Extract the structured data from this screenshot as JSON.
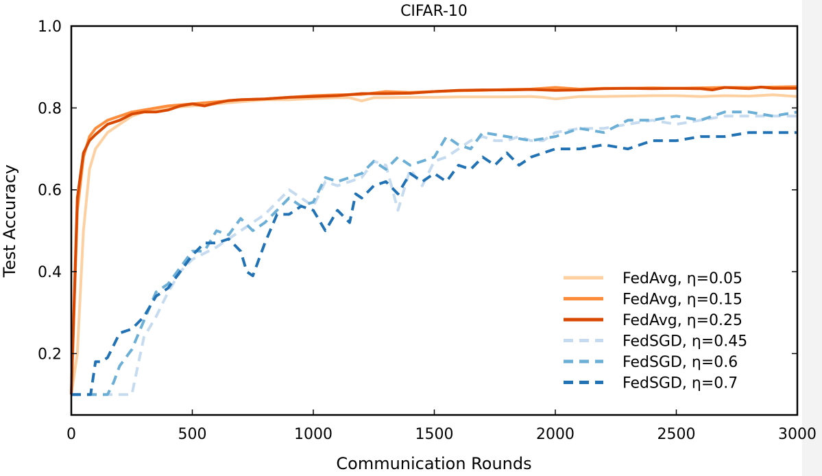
{
  "chart_data": {
    "type": "line",
    "title": "CIFAR-10",
    "xlabel": "Communication Rounds",
    "ylabel": "Test Accuracy",
    "xlim": [
      0,
      3000
    ],
    "ylim": [
      0.05,
      1.0
    ],
    "xticks": [
      0,
      500,
      1000,
      1500,
      2000,
      2500,
      3000
    ],
    "xtick_labels": [
      "0",
      "500",
      "1000",
      "1500",
      "2000",
      "2500",
      "3000"
    ],
    "yticks": [
      0.2,
      0.4,
      0.6,
      0.8,
      1.0
    ],
    "ytick_labels": [
      "0.2",
      "0.4",
      "0.6",
      "0.8",
      "1.0"
    ],
    "grid": false,
    "legend_position": "lower-right",
    "series": [
      {
        "name": "FedAvg, η=0.05",
        "color": "#fdd0a2",
        "style": "solid",
        "x": [
          0,
          25,
          50,
          75,
          100,
          150,
          200,
          250,
          300,
          400,
          500,
          600,
          700,
          800,
          900,
          1000,
          1100,
          1150,
          1200,
          1250,
          1300,
          1400,
          1500,
          1600,
          1700,
          1800,
          1900,
          1950,
          2000,
          2100,
          2200,
          2300,
          2400,
          2500,
          2600,
          2700,
          2800,
          2900,
          3000
        ],
        "y": [
          0.1,
          0.2,
          0.5,
          0.65,
          0.7,
          0.74,
          0.76,
          0.78,
          0.79,
          0.8,
          0.805,
          0.81,
          0.815,
          0.82,
          0.82,
          0.823,
          0.825,
          0.825,
          0.817,
          0.825,
          0.825,
          0.826,
          0.826,
          0.827,
          0.827,
          0.827,
          0.828,
          0.826,
          0.822,
          0.828,
          0.828,
          0.829,
          0.83,
          0.83,
          0.828,
          0.83,
          0.829,
          0.832,
          0.828
        ]
      },
      {
        "name": "FedAvg, η=0.15",
        "color": "#fd8d3c",
        "style": "solid",
        "x": [
          0,
          25,
          50,
          75,
          100,
          150,
          200,
          250,
          300,
          400,
          500,
          600,
          700,
          800,
          900,
          1000,
          1100,
          1200,
          1300,
          1400,
          1500,
          1600,
          1700,
          1800,
          1900,
          2000,
          2100,
          2200,
          2300,
          2400,
          2500,
          2600,
          2700,
          2800,
          2900,
          3000
        ],
        "y": [
          0.1,
          0.55,
          0.68,
          0.73,
          0.75,
          0.77,
          0.78,
          0.79,
          0.795,
          0.805,
          0.81,
          0.815,
          0.82,
          0.822,
          0.826,
          0.83,
          0.832,
          0.833,
          0.84,
          0.838,
          0.84,
          0.842,
          0.843,
          0.845,
          0.846,
          0.85,
          0.846,
          0.848,
          0.848,
          0.849,
          0.848,
          0.849,
          0.85,
          0.85,
          0.851,
          0.852
        ]
      },
      {
        "name": "FedAvg, η=0.25",
        "color": "#d94801",
        "style": "solid",
        "x": [
          0,
          25,
          50,
          75,
          100,
          150,
          200,
          250,
          300,
          350,
          400,
          450,
          500,
          550,
          600,
          650,
          700,
          800,
          900,
          1000,
          1100,
          1200,
          1300,
          1400,
          1500,
          1600,
          1700,
          1800,
          1900,
          2000,
          2100,
          2200,
          2300,
          2400,
          2500,
          2600,
          2650,
          2700,
          2800,
          2850,
          2900,
          3000
        ],
        "y": [
          0.1,
          0.58,
          0.69,
          0.72,
          0.735,
          0.76,
          0.77,
          0.785,
          0.79,
          0.79,
          0.795,
          0.805,
          0.81,
          0.805,
          0.812,
          0.818,
          0.82,
          0.822,
          0.826,
          0.828,
          0.83,
          0.835,
          0.835,
          0.836,
          0.84,
          0.843,
          0.844,
          0.844,
          0.845,
          0.843,
          0.844,
          0.847,
          0.848,
          0.847,
          0.848,
          0.847,
          0.844,
          0.85,
          0.847,
          0.851,
          0.848,
          0.848
        ]
      },
      {
        "name": "FedSGD, η=0.45",
        "color": "#c6dbef",
        "style": "dashed",
        "x": [
          0,
          100,
          150,
          200,
          250,
          300,
          350,
          400,
          450,
          500,
          600,
          700,
          800,
          900,
          1000,
          1050,
          1100,
          1150,
          1200,
          1250,
          1300,
          1350,
          1400,
          1450,
          1500,
          1550,
          1600,
          1650,
          1700,
          1750,
          1800,
          1850,
          1900,
          1950,
          2000,
          2100,
          2200,
          2300,
          2400,
          2500,
          2600,
          2700,
          2800,
          2900,
          3000
        ],
        "y": [
          0.1,
          0.1,
          0.1,
          0.1,
          0.1,
          0.24,
          0.29,
          0.35,
          0.4,
          0.43,
          0.46,
          0.5,
          0.54,
          0.6,
          0.56,
          0.62,
          0.61,
          0.62,
          0.63,
          0.67,
          0.66,
          0.55,
          0.65,
          0.61,
          0.67,
          0.68,
          0.7,
          0.72,
          0.73,
          0.72,
          0.72,
          0.73,
          0.72,
          0.72,
          0.74,
          0.75,
          0.75,
          0.76,
          0.77,
          0.76,
          0.77,
          0.78,
          0.78,
          0.78,
          0.78
        ]
      },
      {
        "name": "FedSGD, η=0.6",
        "color": "#6baed6",
        "style": "dashed",
        "x": [
          0,
          100,
          150,
          175,
          200,
          250,
          300,
          350,
          400,
          450,
          500,
          550,
          600,
          650,
          700,
          750,
          800,
          850,
          900,
          950,
          1000,
          1050,
          1100,
          1150,
          1200,
          1250,
          1300,
          1350,
          1400,
          1450,
          1500,
          1550,
          1600,
          1650,
          1700,
          1800,
          1900,
          2000,
          2100,
          2200,
          2300,
          2400,
          2500,
          2600,
          2700,
          2800,
          2900,
          3000
        ],
        "y": [
          0.1,
          0.1,
          0.1,
          0.13,
          0.17,
          0.21,
          0.28,
          0.35,
          0.37,
          0.41,
          0.45,
          0.45,
          0.5,
          0.49,
          0.53,
          0.5,
          0.52,
          0.55,
          0.58,
          0.56,
          0.57,
          0.63,
          0.62,
          0.63,
          0.64,
          0.67,
          0.65,
          0.68,
          0.66,
          0.67,
          0.68,
          0.73,
          0.71,
          0.7,
          0.74,
          0.73,
          0.72,
          0.73,
          0.75,
          0.74,
          0.77,
          0.77,
          0.78,
          0.77,
          0.79,
          0.79,
          0.78,
          0.79
        ]
      },
      {
        "name": "FedSGD, η=0.7",
        "color": "#2171b5",
        "style": "dashed",
        "x": [
          0,
          80,
          100,
          125,
          150,
          175,
          200,
          250,
          300,
          350,
          400,
          450,
          500,
          550,
          600,
          650,
          700,
          725,
          750,
          775,
          800,
          850,
          900,
          950,
          1000,
          1050,
          1100,
          1150,
          1175,
          1200,
          1250,
          1300,
          1350,
          1400,
          1450,
          1500,
          1550,
          1600,
          1650,
          1700,
          1750,
          1800,
          1850,
          1900,
          1950,
          2000,
          2100,
          2200,
          2300,
          2400,
          2500,
          2600,
          2700,
          2800,
          2900,
          3000
        ],
        "y": [
          0.1,
          0.1,
          0.18,
          0.18,
          0.19,
          0.22,
          0.25,
          0.26,
          0.29,
          0.34,
          0.36,
          0.4,
          0.44,
          0.47,
          0.47,
          0.48,
          0.45,
          0.4,
          0.39,
          0.43,
          0.47,
          0.54,
          0.54,
          0.56,
          0.55,
          0.5,
          0.55,
          0.52,
          0.59,
          0.58,
          0.61,
          0.62,
          0.59,
          0.64,
          0.62,
          0.64,
          0.62,
          0.66,
          0.65,
          0.68,
          0.66,
          0.69,
          0.66,
          0.68,
          0.69,
          0.7,
          0.7,
          0.71,
          0.7,
          0.72,
          0.72,
          0.73,
          0.73,
          0.74,
          0.74,
          0.74
        ]
      }
    ]
  }
}
